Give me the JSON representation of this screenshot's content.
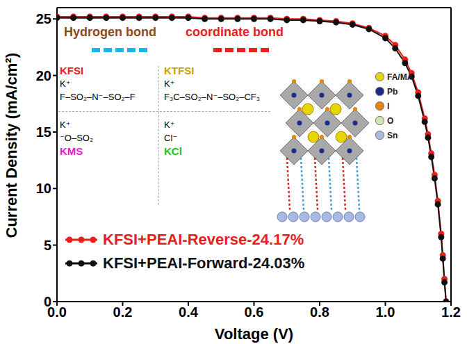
{
  "chart_data": {
    "type": "line",
    "xlabel": "Voltage (V)",
    "ylabel": "Current Density (mA/cm²)",
    "x": [
      0,
      0.05,
      0.1,
      0.15,
      0.2,
      0.25,
      0.3,
      0.35,
      0.4,
      0.45,
      0.5,
      0.55,
      0.6,
      0.65,
      0.7,
      0.75,
      0.8,
      0.85,
      0.9,
      0.95,
      1.0,
      1.03,
      1.06,
      1.08,
      1.1,
      1.12,
      1.13,
      1.14,
      1.15,
      1.16,
      1.17,
      1.175,
      1.18,
      1.185
    ],
    "series": [
      {
        "name": "KFSI+PEAI-Reverse-24.17%",
        "color": "#e8201c",
        "marker": "circle",
        "values": [
          25.2,
          25.2,
          25.2,
          25.2,
          25.2,
          25.2,
          25.2,
          25.2,
          25.2,
          25.1,
          25.1,
          25.1,
          25.1,
          25.1,
          25.0,
          25.0,
          24.9,
          24.8,
          24.6,
          24.2,
          23.5,
          22.7,
          21.4,
          20.2,
          18.5,
          16.2,
          14.8,
          13.1,
          11.2,
          8.9,
          6.0,
          4.1,
          2.0,
          0
        ]
      },
      {
        "name": "KFSI+PEAI-Forward-24.03%",
        "color": "#111111",
        "marker": "circle",
        "values": [
          25.1,
          25.1,
          25.1,
          25.1,
          25.1,
          25.1,
          25.1,
          25.1,
          25.1,
          25.0,
          25.0,
          25.0,
          25.0,
          25.0,
          24.9,
          24.9,
          24.8,
          24.7,
          24.5,
          24.1,
          23.3,
          22.4,
          21.1,
          19.9,
          18.2,
          15.9,
          14.5,
          12.8,
          10.9,
          8.6,
          5.7,
          3.8,
          1.7,
          0
        ]
      }
    ],
    "xlim": [
      0,
      1.2
    ],
    "ylim": [
      0,
      26
    ],
    "xticks": [
      {
        "value": 0,
        "label": "0.0"
      },
      {
        "value": 0.2,
        "label": "0.2"
      },
      {
        "value": 0.4,
        "label": "0.4"
      },
      {
        "value": 0.6,
        "label": "0.6"
      },
      {
        "value": 0.8,
        "label": "0.8"
      },
      {
        "value": 1.0,
        "label": "1.0"
      },
      {
        "value": 1.2,
        "label": "1.2"
      }
    ],
    "yticks": [
      0,
      5,
      10,
      15,
      20,
      25
    ],
    "grid": false,
    "legend": "lower left",
    "annotations": [
      {
        "text": "Hydrogen bond",
        "color": "#8b4a1c",
        "line_color": "#19b5e8"
      },
      {
        "text": "coordinate bond",
        "color": "#e8201c",
        "line_color": "#e8201c"
      }
    ],
    "molecules": [
      {
        "name": "KFSI",
        "color": "#e8201c",
        "cation": "K⁺",
        "anion": "F–SO₂–N⁻–SO₂–F"
      },
      {
        "name": "KTFSI",
        "color": "#c9a400",
        "cation": "K⁺",
        "anion": "F₃C–SO₂–N⁻–SO₂–CF₃"
      },
      {
        "name": "KMS",
        "color": "#e020d0",
        "cation": "K⁺",
        "anion": "⁻O–SO₂"
      },
      {
        "name": "KCl",
        "color": "#20c020",
        "cation": "K⁺",
        "anion": "Cl⁻"
      }
    ],
    "atom_legend": [
      {
        "label": "FA/MA",
        "color": "#e8d400"
      },
      {
        "label": "Pb",
        "color": "#1a2a8a"
      },
      {
        "label": "I",
        "color": "#e8820a"
      },
      {
        "label": "O",
        "color": "#cfe8b0"
      },
      {
        "label": "Sn",
        "color": "#aab8e0"
      }
    ]
  }
}
